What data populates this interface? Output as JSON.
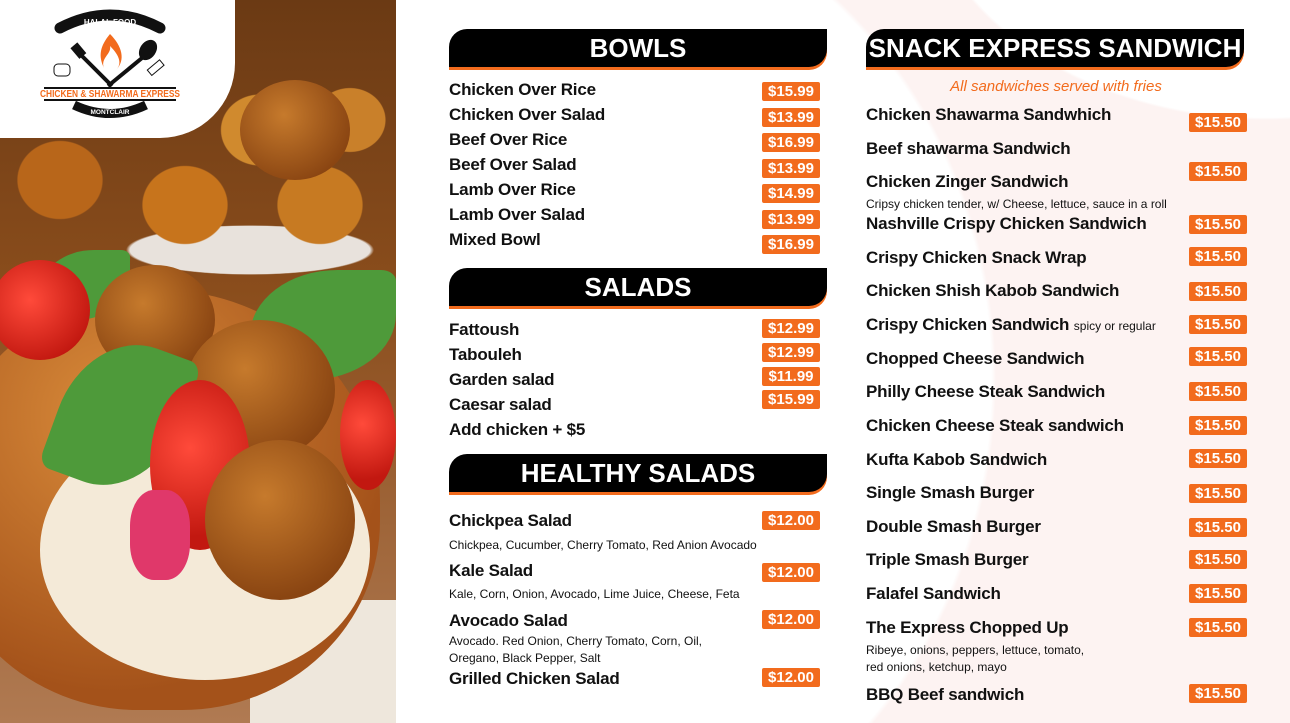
{
  "brand": {
    "top": "HALAL FOOD",
    "name": "CHICKEN & SHAWARMA EXPRESS",
    "location": "MONTCLAIR",
    "accent": "#f26b1d"
  },
  "bowls": {
    "title": "BOWLS",
    "items": [
      {
        "name": "Chicken Over Rice",
        "price": "$15.99"
      },
      {
        "name": "Chicken Over Salad",
        "price": "$13.99"
      },
      {
        "name": "Beef Over Rice",
        "price": "$16.99"
      },
      {
        "name": "Beef Over Salad",
        "price": "$13.99"
      },
      {
        "name": "Lamb Over Rice",
        "price": "$14.99"
      },
      {
        "name": "Lamb Over Salad",
        "price": "$13.99"
      },
      {
        "name": "Mixed Bowl",
        "price": "$16.99"
      }
    ]
  },
  "salads": {
    "title": "SALADS",
    "items": [
      {
        "name": "Fattoush",
        "price": "$12.99"
      },
      {
        "name": "Tabouleh",
        "price": "$12.99"
      },
      {
        "name": "Garden salad",
        "price": "$11.99"
      },
      {
        "name": "Caesar salad",
        "price": "$15.99"
      },
      {
        "name": "Add chicken + $5"
      }
    ]
  },
  "healthy": {
    "title": "HEALTHY SALADS",
    "items": [
      {
        "name": "Chickpea Salad",
        "price": "$12.00",
        "desc": [
          "Chickpea, Cucumber, Cherry Tomato, Red Anion Avocado"
        ]
      },
      {
        "name": "Kale Salad",
        "price": "$12.00",
        "desc": [
          "Kale, Corn, Onion, Avocado, Lime Juice, Cheese, Feta"
        ]
      },
      {
        "name": "Avocado Salad",
        "price": "$12.00",
        "desc": [
          "Avocado. Red Onion, Cherry Tomato, Corn, Oil,",
          "Oregano, Black Pepper, Salt"
        ]
      },
      {
        "name": "Grilled Chicken Salad",
        "price": "$12.00"
      }
    ]
  },
  "sandwiches": {
    "title": "SNACK EXPRESS SANDWICH",
    "subtitle": "All sandwiches served with fries",
    "items": [
      {
        "name": "Chicken Shawarma Sandwhich",
        "price": "$15.50"
      },
      {
        "name": "Beef shawarma Sandwich"
      },
      {
        "name": "Chicken Zinger Sandwich",
        "price": "$15.50",
        "desc": [
          "Cripsy chicken tender, w/ Cheese, lettuce, sauce in a roll"
        ]
      },
      {
        "name": "Nashville Crispy Chicken Sandwich",
        "price": "$15.50"
      },
      {
        "name": "Crispy Chicken Snack Wrap",
        "price": "$15.50"
      },
      {
        "name": "Chicken Shish Kabob Sandwich",
        "price": "$15.50"
      },
      {
        "name": "Crispy Chicken Sandwich",
        "note": "spicy or regular",
        "price": "$15.50"
      },
      {
        "name": "Chopped Cheese Sandwich",
        "price": "$15.50"
      },
      {
        "name": "Philly Cheese Steak Sandwich",
        "price": "$15.50"
      },
      {
        "name": "Chicken Cheese Steak sandwich",
        "price": "$15.50"
      },
      {
        "name": "Kufta Kabob Sandwich",
        "price": "$15.50"
      },
      {
        "name": "Single Smash Burger",
        "price": "$15.50"
      },
      {
        "name": "Double Smash Burger",
        "price": "$15.50"
      },
      {
        "name": "Triple Smash Burger",
        "price": "$15.50"
      },
      {
        "name": "Falafel Sandwich",
        "price": "$15.50"
      },
      {
        "name": "The Express Chopped Up",
        "price": "$15.50",
        "desc": [
          "Ribeye, onions, peppers, lettuce, tomato,",
          "red onions, ketchup, mayo"
        ]
      },
      {
        "name": "BBQ Beef sandwich",
        "price": "$15.50"
      }
    ]
  }
}
